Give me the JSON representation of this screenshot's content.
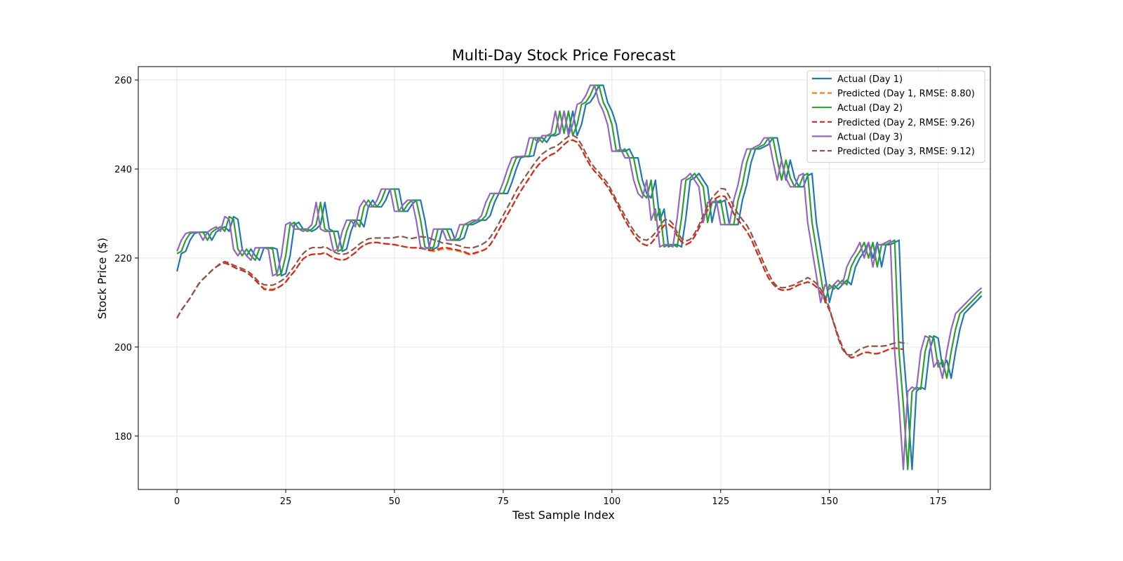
{
  "chart_data": {
    "type": "line",
    "title": "Multi-Day Stock Price Forecast",
    "xlabel": "Test Sample Index",
    "ylabel": "Stock Price ($)",
    "xlim": [
      -8.9,
      187
    ],
    "ylim": [
      168,
      263
    ],
    "xticks": [
      0,
      25,
      50,
      75,
      100,
      125,
      150,
      175
    ],
    "yticks": [
      180,
      200,
      220,
      240,
      260
    ],
    "grid": true,
    "legend_position": "top-right",
    "x_step": 1,
    "series": [
      {
        "name": "Actual (Day 1)",
        "color": "#1f77b4",
        "dash": "solid",
        "values": [
          217.0,
          221.0,
          221.5,
          224.0,
          225.5,
          225.8,
          225.8,
          225.8,
          224.0,
          225.8,
          226.5,
          227.0,
          226.0,
          229.3,
          228.7,
          222.0,
          220.5,
          222.0,
          220.5,
          219.5,
          222.3,
          222.3,
          222.3,
          222.0,
          216.0,
          216.5,
          220.5,
          227.5,
          228.0,
          226.5,
          226.5,
          226.0,
          226.5,
          227.5,
          232.5,
          226.5,
          226.0,
          226.0,
          221.5,
          222.0,
          226.0,
          228.5,
          228.5,
          227.0,
          231.5,
          233.0,
          231.5,
          231.5,
          233.0,
          235.5,
          235.5,
          235.5,
          230.5,
          230.5,
          232.0,
          233.0,
          233.0,
          228.5,
          222.5,
          222.0,
          222.5,
          226.5,
          226.5,
          226.5,
          224.0,
          224.0,
          224.5,
          227.5,
          227.5,
          228.0,
          228.5,
          228.5,
          229.5,
          232.5,
          234.5,
          234.5,
          234.5,
          237.0,
          240.0,
          242.5,
          242.8,
          242.8,
          243.0,
          247.0,
          247.0,
          246.0,
          247.5,
          247.5,
          248.0,
          253.0,
          248.0,
          253.0,
          247.5,
          250.0,
          254.5,
          255.0,
          256.5,
          258.8,
          258.8,
          255.0,
          253.0,
          250.0,
          244.0,
          244.0,
          244.5,
          242.5,
          242.5,
          237.5,
          234.5,
          233.5,
          237.5,
          228.5,
          231.0,
          222.5,
          223.0,
          223.0,
          222.5,
          229.0,
          237.5,
          238.0,
          239.0,
          237.5,
          236.0,
          228.0,
          232.5,
          232.5,
          233.0,
          227.5,
          227.5,
          227.5,
          233.0,
          236.5,
          241.5,
          244.5,
          244.5,
          245.0,
          245.5,
          247.0,
          247.0,
          242.0,
          237.5,
          242.0,
          238.0,
          236.0,
          236.0,
          238.5,
          239.0,
          228.0,
          222.0,
          216.0,
          210.0,
          214.0,
          213.0,
          214.0,
          215.0,
          214.0,
          218.0,
          220.0,
          221.5,
          223.5,
          220.0,
          223.5,
          218.0,
          223.0,
          223.0,
          223.5,
          224.0,
          199.0,
          187.0,
          172.5,
          190.0,
          191.0,
          190.5,
          199.0,
          202.5,
          202.0,
          195.5,
          197.0,
          193.0,
          199.0,
          204.0,
          207.5,
          208.5,
          209.5,
          210.5,
          211.5
        ]
      },
      {
        "name": "Predicted (Day 1, RMSE: 8.80)",
        "color": "#ff7f0e",
        "dash": "dashed",
        "values": [
          206.5,
          208.3,
          209.6,
          211.0,
          212.6,
          214.2,
          215.3,
          216.2,
          217.2,
          218.0,
          218.6,
          218.9,
          218.5,
          218.0,
          217.5,
          217.2,
          216.8,
          216.0,
          215.0,
          214.0,
          213.2,
          213.0,
          213.0,
          213.3,
          213.8,
          214.6,
          215.9,
          217.0,
          218.5,
          219.8,
          220.5,
          220.8,
          220.9,
          220.9,
          221.2,
          220.6,
          220.0,
          219.7,
          219.5,
          219.8,
          220.5,
          221.2,
          222.2,
          222.9,
          223.3,
          223.5,
          223.5,
          223.3,
          223.2,
          223.1,
          223.0,
          222.8,
          222.6,
          222.4,
          222.3,
          222.3,
          222.2,
          222.0,
          221.7,
          221.5,
          221.7,
          222.0,
          222.0,
          221.9,
          221.7,
          221.5,
          221.2,
          220.8,
          220.8,
          221.2,
          221.5,
          222.0,
          223.0,
          224.5,
          226.3,
          228.0,
          229.8,
          231.5,
          233.3,
          235.0,
          236.5,
          238.0,
          239.5,
          240.8,
          241.8,
          242.6,
          243.2,
          243.6,
          244.5,
          245.5,
          246.3,
          246.5,
          246.0,
          244.5,
          242.5,
          240.8,
          239.5,
          238.5,
          237.3,
          236.0,
          234.3,
          232.5,
          230.5,
          228.5,
          226.8,
          225.3,
          224.0,
          223.2,
          222.8,
          223.3,
          224.5,
          226.0,
          227.3,
          227.6,
          226.8,
          225.0,
          223.6,
          223.0,
          223.5,
          224.8,
          226.7,
          228.8,
          230.8,
          232.5,
          233.5,
          234.0,
          233.8,
          232.2,
          230.0,
          228.5,
          227.3,
          226.0,
          224.3,
          222.0,
          219.8,
          217.5,
          215.5,
          214.2,
          213.2,
          212.8,
          212.8,
          213.0,
          213.5,
          214.0,
          214.3,
          214.6,
          214.3,
          213.5,
          212.2,
          210.5,
          208.3,
          205.5,
          202.5,
          200.0,
          198.3,
          197.6,
          197.8,
          198.3,
          198.8,
          198.8,
          198.5,
          198.5,
          198.8,
          199.2,
          199.6,
          199.8,
          199.6,
          199.5
        ]
      },
      {
        "name": "Actual (Day 2)",
        "color": "#2ca02c",
        "dash": "solid",
        "values": [
          221.0,
          221.5,
          224.0,
          225.5,
          225.8,
          225.8,
          225.8,
          224.0,
          225.8,
          226.5,
          227.0,
          226.0,
          229.3,
          228.7,
          222.0,
          220.5,
          222.0,
          220.5,
          219.5,
          222.3,
          222.3,
          222.3,
          222.0,
          216.0,
          216.5,
          220.5,
          227.5,
          228.0,
          226.5,
          226.5,
          226.0,
          226.5,
          227.5,
          232.5,
          226.5,
          226.0,
          226.0,
          221.5,
          222.0,
          226.0,
          228.5,
          228.5,
          227.0,
          231.5,
          233.0,
          231.5,
          231.5,
          233.0,
          235.5,
          235.5,
          235.5,
          230.5,
          230.5,
          232.0,
          233.0,
          233.0,
          228.5,
          222.5,
          222.0,
          222.5,
          226.5,
          226.5,
          226.5,
          224.0,
          224.0,
          224.5,
          227.5,
          227.5,
          228.0,
          228.5,
          228.5,
          229.5,
          232.5,
          234.5,
          234.5,
          234.5,
          237.0,
          240.0,
          242.5,
          242.8,
          242.8,
          243.0,
          247.0,
          247.0,
          246.0,
          247.5,
          247.5,
          248.0,
          253.0,
          248.0,
          253.0,
          247.5,
          250.0,
          254.5,
          255.0,
          256.5,
          258.8,
          258.8,
          255.0,
          253.0,
          250.0,
          244.0,
          244.0,
          244.5,
          242.5,
          242.5,
          237.5,
          234.5,
          233.5,
          237.5,
          228.5,
          231.0,
          222.5,
          223.0,
          223.0,
          222.5,
          229.0,
          237.5,
          238.0,
          239.0,
          237.5,
          236.0,
          228.0,
          232.5,
          232.5,
          233.0,
          227.5,
          227.5,
          227.5,
          233.0,
          236.5,
          241.5,
          244.5,
          244.5,
          245.0,
          245.5,
          247.0,
          247.0,
          242.0,
          237.5,
          242.0,
          238.0,
          236.0,
          236.0,
          238.5,
          239.0,
          228.0,
          222.0,
          216.0,
          210.0,
          214.0,
          213.0,
          214.0,
          215.0,
          214.0,
          218.0,
          220.0,
          221.5,
          223.5,
          220.0,
          223.5,
          218.0,
          223.0,
          223.0,
          223.5,
          224.0,
          199.0,
          187.0,
          172.5,
          190.0,
          191.0,
          190.5,
          199.0,
          202.5,
          202.0,
          195.5,
          197.0,
          193.0,
          199.0,
          204.0,
          207.5,
          208.5,
          209.5,
          210.5,
          211.5,
          212.5
        ]
      },
      {
        "name": "Predicted (Day 2, RMSE: 9.26)",
        "color": "#d62728",
        "dash": "dashed",
        "values": [
          206.5,
          208.3,
          209.6,
          211.0,
          212.6,
          214.2,
          215.3,
          216.2,
          217.2,
          218.0,
          218.6,
          218.9,
          218.5,
          218.0,
          217.5,
          217.2,
          216.8,
          216.0,
          215.0,
          214.0,
          213.0,
          212.8,
          212.8,
          213.2,
          213.8,
          214.6,
          215.9,
          217.0,
          218.5,
          219.8,
          220.5,
          220.8,
          220.9,
          220.9,
          221.2,
          220.6,
          220.0,
          219.7,
          219.5,
          219.8,
          220.5,
          221.2,
          222.2,
          222.9,
          223.3,
          223.5,
          223.5,
          223.3,
          223.2,
          223.1,
          223.0,
          222.8,
          222.6,
          222.4,
          222.3,
          222.3,
          222.2,
          222.0,
          221.7,
          221.8,
          222.0,
          222.3,
          222.3,
          222.1,
          221.9,
          221.7,
          221.4,
          221.0,
          221.0,
          221.3,
          221.6,
          222.0,
          223.0,
          224.5,
          226.3,
          228.0,
          229.8,
          231.5,
          233.3,
          235.0,
          236.5,
          238.0,
          239.5,
          240.8,
          241.8,
          242.6,
          243.2,
          243.6,
          244.5,
          245.5,
          246.3,
          246.5,
          246.0,
          244.5,
          242.5,
          240.8,
          239.5,
          238.5,
          237.3,
          236.0,
          234.3,
          232.5,
          230.5,
          228.5,
          226.8,
          225.3,
          224.0,
          223.2,
          222.8,
          223.3,
          224.5,
          226.0,
          227.3,
          227.6,
          226.8,
          225.0,
          223.6,
          223.0,
          223.5,
          224.8,
          226.7,
          228.8,
          230.8,
          232.5,
          233.5,
          234.0,
          233.8,
          232.2,
          230.0,
          228.5,
          227.3,
          226.0,
          224.3,
          222.0,
          219.8,
          217.5,
          215.5,
          214.2,
          213.2,
          212.8,
          212.8,
          213.0,
          213.5,
          214.0,
          214.3,
          214.6,
          214.3,
          213.5,
          212.2,
          210.5,
          208.3,
          205.5,
          202.5,
          200.0,
          198.3,
          197.6,
          197.8,
          198.3,
          198.8,
          198.8,
          198.5,
          198.5,
          198.8,
          199.2,
          199.6,
          199.8,
          199.6,
          199.5
        ]
      },
      {
        "name": "Actual (Day 3)",
        "color": "#9467bd",
        "dash": "solid",
        "values": [
          221.5,
          224.0,
          225.5,
          225.8,
          225.8,
          225.8,
          224.0,
          225.8,
          226.5,
          227.0,
          226.0,
          229.3,
          228.7,
          222.0,
          220.5,
          222.0,
          220.5,
          219.5,
          222.3,
          222.3,
          222.3,
          222.0,
          216.0,
          216.5,
          220.5,
          227.5,
          228.0,
          226.5,
          226.5,
          226.0,
          226.5,
          227.5,
          232.5,
          226.5,
          226.0,
          226.0,
          221.5,
          222.0,
          226.0,
          228.5,
          228.5,
          227.0,
          231.5,
          233.0,
          231.5,
          231.5,
          233.0,
          235.5,
          235.5,
          235.5,
          230.5,
          230.5,
          232.0,
          233.0,
          233.0,
          228.5,
          222.5,
          222.0,
          222.5,
          226.5,
          226.5,
          226.5,
          224.0,
          224.0,
          224.5,
          227.5,
          227.5,
          228.0,
          228.5,
          228.5,
          229.5,
          232.5,
          234.5,
          234.5,
          234.5,
          237.0,
          240.0,
          242.5,
          242.8,
          242.8,
          243.0,
          247.0,
          247.0,
          246.0,
          247.5,
          247.5,
          248.0,
          253.0,
          248.0,
          253.0,
          247.5,
          250.0,
          254.5,
          255.0,
          256.5,
          258.8,
          258.8,
          255.0,
          253.0,
          250.0,
          244.0,
          244.0,
          244.5,
          242.5,
          242.5,
          237.5,
          234.5,
          233.5,
          237.5,
          228.5,
          231.0,
          222.5,
          223.0,
          223.0,
          222.5,
          229.0,
          237.5,
          238.0,
          239.0,
          237.5,
          236.0,
          228.0,
          232.5,
          232.5,
          233.0,
          227.5,
          227.5,
          227.5,
          233.0,
          236.5,
          241.5,
          244.5,
          244.5,
          245.0,
          245.5,
          247.0,
          247.0,
          242.0,
          237.5,
          242.0,
          238.0,
          236.0,
          236.0,
          238.5,
          239.0,
          228.0,
          222.0,
          216.0,
          210.0,
          214.0,
          213.0,
          214.0,
          215.0,
          214.0,
          218.0,
          220.0,
          221.5,
          223.5,
          220.0,
          223.5,
          218.0,
          223.0,
          223.0,
          223.5,
          224.0,
          199.0,
          187.0,
          172.5,
          190.0,
          191.0,
          190.5,
          199.0,
          202.5,
          202.0,
          195.5,
          197.0,
          193.0,
          199.0,
          204.0,
          207.5,
          208.5,
          209.5,
          210.5,
          211.5,
          212.5,
          213.3
        ]
      },
      {
        "name": "Predicted (Day 3, RMSE: 9.12)",
        "color": "#8c564b",
        "dash": "dashed",
        "values": [
          206.5,
          208.3,
          209.6,
          211.0,
          212.6,
          214.2,
          215.3,
          216.2,
          217.2,
          218.0,
          218.8,
          219.2,
          218.9,
          218.4,
          218.0,
          217.6,
          217.2,
          216.5,
          215.5,
          214.5,
          214.0,
          213.9,
          213.9,
          214.3,
          214.9,
          215.6,
          216.9,
          218.2,
          219.7,
          221.0,
          221.9,
          222.3,
          222.4,
          222.3,
          222.6,
          222.0,
          221.4,
          221.0,
          220.8,
          221.0,
          221.6,
          222.3,
          223.2,
          223.8,
          224.3,
          224.5,
          224.5,
          224.5,
          224.5,
          224.5,
          224.6,
          224.8,
          224.8,
          224.5,
          224.4,
          224.6,
          224.8,
          224.7,
          224.5,
          224.1,
          223.8,
          223.4,
          223.3,
          223.1,
          223.0,
          222.7,
          222.4,
          222.3,
          222.3,
          222.6,
          223.0,
          223.6,
          224.6,
          226.1,
          227.8,
          229.6,
          231.4,
          233.2,
          235.1,
          236.7,
          238.2,
          239.6,
          241.0,
          242.3,
          243.4,
          244.1,
          244.7,
          245.0,
          245.7,
          246.6,
          247.3,
          247.6,
          247.0,
          245.5,
          243.5,
          241.7,
          240.3,
          239.3,
          238.0,
          236.8,
          235.0,
          233.1,
          231.3,
          229.5,
          227.7,
          226.2,
          224.9,
          224.2,
          224.0,
          224.6,
          225.7,
          227.2,
          228.5,
          228.7,
          227.7,
          225.8,
          224.4,
          223.8,
          224.2,
          225.5,
          227.4,
          229.6,
          231.7,
          233.5,
          234.6,
          235.6,
          235.5,
          233.8,
          231.6,
          229.9,
          228.6,
          227.4,
          225.6,
          223.3,
          221.0,
          218.7,
          216.5,
          214.7,
          213.6,
          213.3,
          213.4,
          213.7,
          214.0,
          214.6,
          215.0,
          215.6,
          215.1,
          214.3,
          213.0,
          211.3,
          208.8,
          205.3,
          202.0,
          199.5,
          198.3,
          198.2,
          198.8,
          199.5,
          199.9,
          200.2,
          200.2,
          200.2,
          200.2,
          200.3,
          200.6,
          200.9,
          201.1,
          200.9,
          200.8
        ]
      }
    ]
  }
}
